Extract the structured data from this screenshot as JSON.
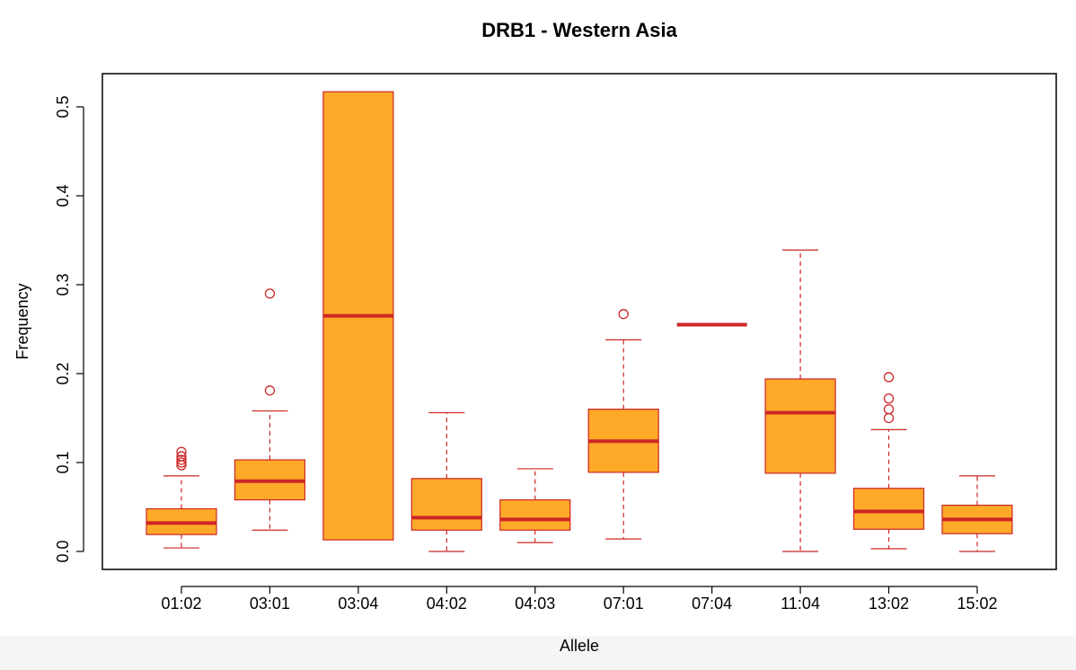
{
  "chart_data": {
    "type": "box",
    "title": "DRB1 - Western Asia",
    "xlabel": "Allele",
    "ylabel": "Frequency",
    "ylim": [
      -0.02,
      0.52
    ],
    "yticks": [
      "0.0",
      "0.1",
      "0.2",
      "0.3",
      "0.4",
      "0.5"
    ],
    "ytick_values": [
      0.0,
      0.1,
      0.2,
      0.3,
      0.4,
      0.5
    ],
    "grid": false,
    "box_fill": "#FFA929",
    "line_color": "#CD2626",
    "categories": [
      "01:02",
      "03:01",
      "03:04",
      "04:02",
      "04:03",
      "07:01",
      "07:04",
      "11:04",
      "13:02",
      "15:02"
    ],
    "boxes": [
      {
        "label": "01:02",
        "whisker_low": 0.004,
        "q1": 0.019,
        "median": 0.032,
        "q3": 0.048,
        "whisker_high": 0.085,
        "outliers": [
          0.097,
          0.1,
          0.103,
          0.107,
          0.112
        ]
      },
      {
        "label": "03:01",
        "whisker_low": 0.024,
        "q1": 0.058,
        "median": 0.079,
        "q3": 0.103,
        "whisker_high": 0.158,
        "outliers": [
          0.181,
          0.29
        ]
      },
      {
        "label": "03:04",
        "whisker_low": 0.013,
        "q1": 0.013,
        "median": 0.265,
        "q3": 0.517,
        "whisker_high": 0.517,
        "outliers": []
      },
      {
        "label": "04:02",
        "whisker_low": 0.0,
        "q1": 0.024,
        "median": 0.038,
        "q3": 0.082,
        "whisker_high": 0.156,
        "outliers": []
      },
      {
        "label": "04:03",
        "whisker_low": 0.01,
        "q1": 0.024,
        "median": 0.036,
        "q3": 0.058,
        "whisker_high": 0.093,
        "outliers": []
      },
      {
        "label": "07:01",
        "whisker_low": 0.014,
        "q1": 0.089,
        "median": 0.124,
        "q3": 0.16,
        "whisker_high": 0.238,
        "outliers": [
          0.267
        ]
      },
      {
        "label": "07:04",
        "whisker_low": 0.255,
        "q1": 0.255,
        "median": 0.255,
        "q3": 0.255,
        "whisker_high": 0.255,
        "outliers": []
      },
      {
        "label": "11:04",
        "whisker_low": 0.0,
        "q1": 0.088,
        "median": 0.156,
        "q3": 0.194,
        "whisker_high": 0.339,
        "outliers": []
      },
      {
        "label": "13:02",
        "whisker_low": 0.003,
        "q1": 0.025,
        "median": 0.045,
        "q3": 0.071,
        "whisker_high": 0.137,
        "outliers": [
          0.15,
          0.16,
          0.172,
          0.196
        ]
      },
      {
        "label": "15:02",
        "whisker_low": 0.0,
        "q1": 0.02,
        "median": 0.036,
        "q3": 0.052,
        "whisker_high": 0.085,
        "outliers": []
      }
    ]
  }
}
